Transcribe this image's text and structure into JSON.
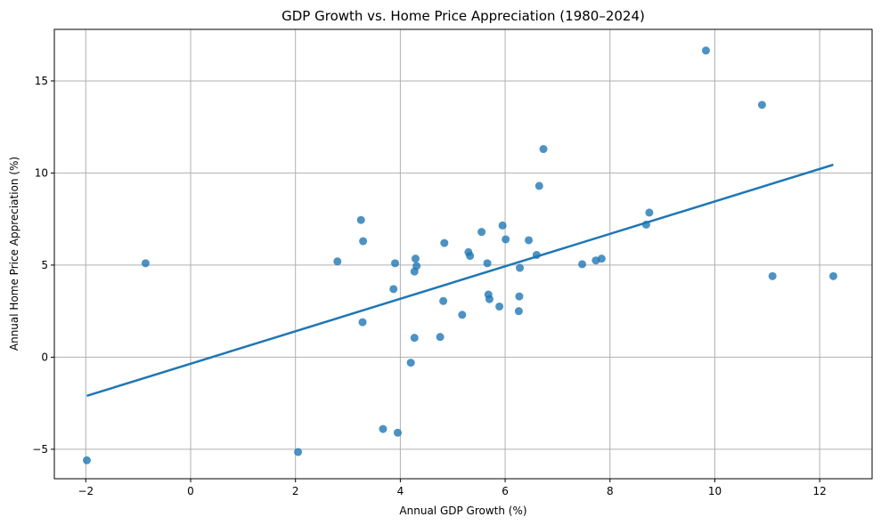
{
  "chart_data": {
    "type": "scatter",
    "title": "GDP Growth vs. Home Price Appreciation (1980–2024)",
    "xlabel": "Annual GDP Growth (%)",
    "ylabel": "Annual Home Price Appreciation (%)",
    "xlim": [
      -2.6,
      13.0
    ],
    "ylim": [
      -6.6,
      17.8
    ],
    "xticks": [
      -2,
      0,
      2,
      4,
      6,
      8,
      10,
      12
    ],
    "yticks": [
      -5,
      0,
      5,
      10,
      15
    ],
    "xtick_labels": [
      "−2",
      "0",
      "2",
      "4",
      "6",
      "8",
      "10",
      "12"
    ],
    "ytick_labels": [
      "−5",
      "0",
      "5",
      "10",
      "15"
    ],
    "grid": true,
    "colors": {
      "points": "#1f77b4",
      "fit_line": "#1f77b4"
    },
    "points": [
      {
        "x": -1.98,
        "y": -5.6
      },
      {
        "x": -0.86,
        "y": 5.1
      },
      {
        "x": 2.05,
        "y": -5.15
      },
      {
        "x": 2.8,
        "y": 5.2
      },
      {
        "x": 3.25,
        "y": 7.45
      },
      {
        "x": 3.29,
        "y": 6.3
      },
      {
        "x": 3.28,
        "y": 1.9
      },
      {
        "x": 3.67,
        "y": -3.9
      },
      {
        "x": 3.87,
        "y": 3.7
      },
      {
        "x": 3.9,
        "y": 5.1
      },
      {
        "x": 3.95,
        "y": -4.1
      },
      {
        "x": 4.2,
        "y": -0.3
      },
      {
        "x": 4.27,
        "y": 1.05
      },
      {
        "x": 4.27,
        "y": 4.65
      },
      {
        "x": 4.29,
        "y": 5.35
      },
      {
        "x": 4.31,
        "y": 4.95
      },
      {
        "x": 4.76,
        "y": 1.1
      },
      {
        "x": 4.82,
        "y": 3.05
      },
      {
        "x": 4.84,
        "y": 6.2
      },
      {
        "x": 5.18,
        "y": 2.3
      },
      {
        "x": 5.3,
        "y": 5.7
      },
      {
        "x": 5.33,
        "y": 5.5
      },
      {
        "x": 5.55,
        "y": 6.8
      },
      {
        "x": 5.66,
        "y": 5.1
      },
      {
        "x": 5.68,
        "y": 3.4
      },
      {
        "x": 5.7,
        "y": 3.15
      },
      {
        "x": 5.89,
        "y": 2.75
      },
      {
        "x": 5.95,
        "y": 7.15
      },
      {
        "x": 6.01,
        "y": 6.4
      },
      {
        "x": 6.26,
        "y": 2.5
      },
      {
        "x": 6.27,
        "y": 3.3
      },
      {
        "x": 6.28,
        "y": 4.85
      },
      {
        "x": 6.45,
        "y": 6.35
      },
      {
        "x": 6.6,
        "y": 5.55
      },
      {
        "x": 6.65,
        "y": 9.3
      },
      {
        "x": 6.73,
        "y": 11.3
      },
      {
        "x": 7.47,
        "y": 5.05
      },
      {
        "x": 7.73,
        "y": 5.25
      },
      {
        "x": 7.84,
        "y": 5.35
      },
      {
        "x": 8.69,
        "y": 7.2
      },
      {
        "x": 8.75,
        "y": 7.85
      },
      {
        "x": 9.83,
        "y": 16.65
      },
      {
        "x": 10.9,
        "y": 13.7
      },
      {
        "x": 11.1,
        "y": 4.4
      },
      {
        "x": 12.26,
        "y": 4.4
      }
    ],
    "fit_line": {
      "x": [
        -1.98,
        12.26
      ],
      "y": [
        -2.1,
        10.45
      ]
    }
  }
}
